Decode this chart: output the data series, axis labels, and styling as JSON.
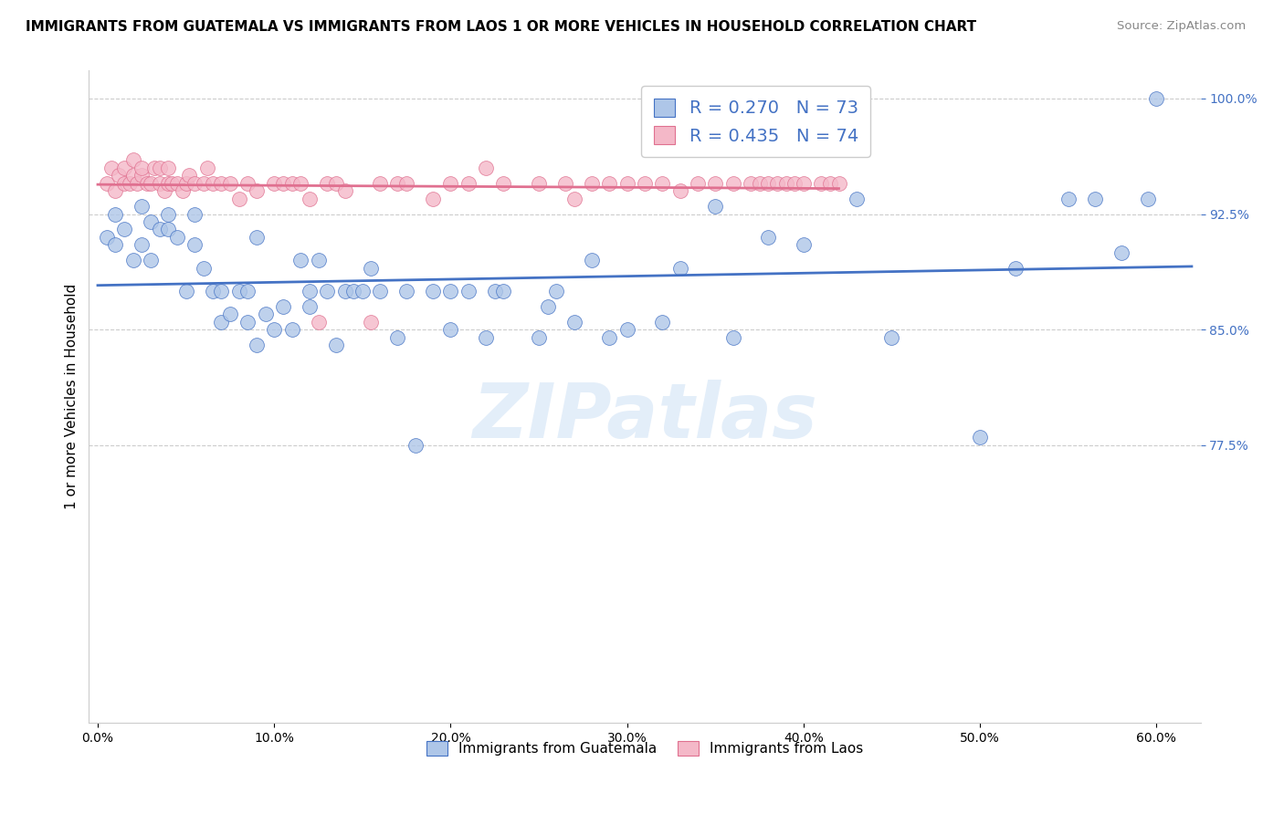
{
  "title": "IMMIGRANTS FROM GUATEMALA VS IMMIGRANTS FROM LAOS 1 OR MORE VEHICLES IN HOUSEHOLD CORRELATION CHART",
  "source": "Source: ZipAtlas.com",
  "ylabel": "1 or more Vehicles in Household",
  "legend1_label": "R = 0.270   N = 73",
  "legend2_label": "R = 0.435   N = 74",
  "legend_color_blue": "#aec6e8",
  "legend_color_pink": "#f4b8c8",
  "line_blue": "#4472c4",
  "line_pink": "#e07090",
  "watermark": "ZIPatlas",
  "guatemala_color": "#aec6e8",
  "laos_color": "#f4b8c8",
  "ylim_low": 0.595,
  "ylim_high": 1.018,
  "xlim_low": -0.005,
  "xlim_high": 0.625,
  "ytick_vals": [
    0.775,
    0.85,
    0.925,
    1.0
  ],
  "ytick_labels": [
    "77.5%",
    "85.0%",
    "92.5%",
    "100.0%"
  ],
  "xtick_vals": [
    0.0,
    0.1,
    0.2,
    0.3,
    0.4,
    0.5,
    0.6
  ],
  "xtick_labels": [
    "0.0%",
    "10.0%",
    "20.0%",
    "30.0%",
    "40.0%",
    "50.0%",
    "60.0%"
  ],
  "guatemala_x": [
    0.005,
    0.01,
    0.01,
    0.015,
    0.02,
    0.025,
    0.025,
    0.03,
    0.03,
    0.035,
    0.04,
    0.04,
    0.045,
    0.05,
    0.055,
    0.055,
    0.06,
    0.065,
    0.07,
    0.07,
    0.075,
    0.08,
    0.085,
    0.085,
    0.09,
    0.09,
    0.095,
    0.1,
    0.105,
    0.11,
    0.115,
    0.12,
    0.12,
    0.125,
    0.13,
    0.135,
    0.14,
    0.145,
    0.15,
    0.155,
    0.16,
    0.17,
    0.175,
    0.18,
    0.19,
    0.2,
    0.2,
    0.21,
    0.22,
    0.225,
    0.23,
    0.25,
    0.255,
    0.26,
    0.27,
    0.28,
    0.29,
    0.3,
    0.32,
    0.33,
    0.35,
    0.36,
    0.38,
    0.4,
    0.43,
    0.45,
    0.5,
    0.52,
    0.55,
    0.565,
    0.58,
    0.595,
    0.6
  ],
  "guatemala_y": [
    0.91,
    0.925,
    0.905,
    0.915,
    0.895,
    0.905,
    0.93,
    0.92,
    0.895,
    0.915,
    0.915,
    0.925,
    0.91,
    0.875,
    0.905,
    0.925,
    0.89,
    0.875,
    0.855,
    0.875,
    0.86,
    0.875,
    0.855,
    0.875,
    0.84,
    0.91,
    0.86,
    0.85,
    0.865,
    0.85,
    0.895,
    0.865,
    0.875,
    0.895,
    0.875,
    0.84,
    0.875,
    0.875,
    0.875,
    0.89,
    0.875,
    0.845,
    0.875,
    0.775,
    0.875,
    0.85,
    0.875,
    0.875,
    0.845,
    0.875,
    0.875,
    0.845,
    0.865,
    0.875,
    0.855,
    0.895,
    0.845,
    0.85,
    0.855,
    0.89,
    0.93,
    0.845,
    0.91,
    0.905,
    0.935,
    0.845,
    0.78,
    0.89,
    0.935,
    0.935,
    0.9,
    0.935,
    1.0
  ],
  "laos_x": [
    0.005,
    0.008,
    0.01,
    0.012,
    0.015,
    0.015,
    0.018,
    0.02,
    0.02,
    0.022,
    0.025,
    0.025,
    0.028,
    0.03,
    0.032,
    0.035,
    0.035,
    0.038,
    0.04,
    0.04,
    0.042,
    0.045,
    0.048,
    0.05,
    0.052,
    0.055,
    0.06,
    0.062,
    0.065,
    0.07,
    0.075,
    0.08,
    0.085,
    0.09,
    0.1,
    0.105,
    0.11,
    0.115,
    0.12,
    0.125,
    0.13,
    0.135,
    0.14,
    0.155,
    0.16,
    0.17,
    0.175,
    0.19,
    0.2,
    0.21,
    0.22,
    0.23,
    0.25,
    0.265,
    0.27,
    0.28,
    0.29,
    0.3,
    0.31,
    0.32,
    0.33,
    0.34,
    0.35,
    0.36,
    0.37,
    0.375,
    0.38,
    0.385,
    0.39,
    0.395,
    0.4,
    0.41,
    0.415,
    0.42
  ],
  "laos_y": [
    0.945,
    0.955,
    0.94,
    0.95,
    0.945,
    0.955,
    0.945,
    0.95,
    0.96,
    0.945,
    0.95,
    0.955,
    0.945,
    0.945,
    0.955,
    0.945,
    0.955,
    0.94,
    0.945,
    0.955,
    0.945,
    0.945,
    0.94,
    0.945,
    0.95,
    0.945,
    0.945,
    0.955,
    0.945,
    0.945,
    0.945,
    0.935,
    0.945,
    0.94,
    0.945,
    0.945,
    0.945,
    0.945,
    0.935,
    0.855,
    0.945,
    0.945,
    0.94,
    0.855,
    0.945,
    0.945,
    0.945,
    0.935,
    0.945,
    0.945,
    0.955,
    0.945,
    0.945,
    0.945,
    0.935,
    0.945,
    0.945,
    0.945,
    0.945,
    0.945,
    0.94,
    0.945,
    0.945,
    0.945,
    0.945,
    0.945,
    0.945,
    0.945,
    0.945,
    0.945,
    0.945,
    0.945,
    0.945,
    0.945
  ]
}
